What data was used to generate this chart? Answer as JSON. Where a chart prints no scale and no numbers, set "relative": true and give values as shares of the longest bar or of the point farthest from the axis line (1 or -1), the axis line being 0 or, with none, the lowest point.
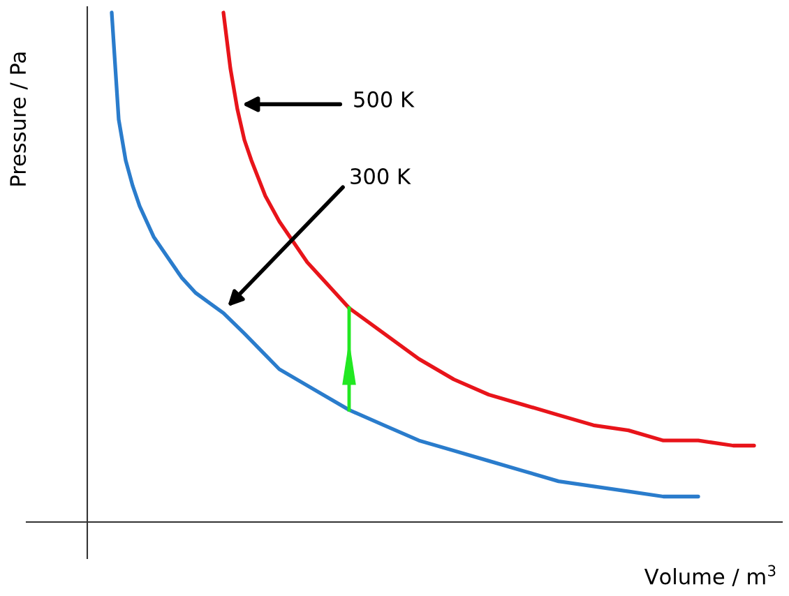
{
  "chart_data": {
    "type": "line",
    "relative": true,
    "annotations": [
      "300 K",
      "500 K"
    ],
    "xlabel": "Volume / m$^{3}$",
    "ylabel": "Pressure / Pa",
    "categories": [
      null,
      null,
      null,
      null,
      null,
      null,
      null,
      null,
      null,
      null,
      null,
      null,
      null,
      null,
      null,
      null,
      null,
      null,
      null,
      null,
      null,
      null,
      null,
      null,
      null,
      null,
      null,
      null,
      null,
      null,
      null,
      null,
      null,
      null,
      null,
      null,
      null,
      null,
      null,
      null,
      null,
      null,
      null,
      null,
      null,
      null,
      null,
      null,
      null,
      null,
      null,
      null,
      null,
      null,
      null,
      null,
      null,
      null,
      null,
      null,
      null,
      null,
      null,
      null,
      null,
      null,
      null,
      null,
      null,
      null,
      null,
      null,
      null,
      null,
      null,
      null,
      null,
      null,
      null,
      null,
      null,
      null,
      null,
      null,
      null,
      null,
      null,
      null,
      null,
      null,
      null,
      null,
      null
    ],
    "series": [
      {
        "color": "#2a7ccc",
        "values": [
          1.0,
          0.79,
          0.71,
          0.66,
          0.62,
          null,
          0.56,
          null,
          0.52,
          null,
          0.48,
          null,
          0.45,
          null,
          0.43,
          null,
          0.41,
          null,
          null,
          0.37,
          null,
          null,
          null,
          null,
          0.3,
          null,
          null,
          null,
          null,
          0.26,
          null,
          null,
          null,
          null,
          0.22,
          null,
          null,
          null,
          null,
          0.19,
          null,
          null,
          null,
          null,
          0.16,
          null,
          null,
          null,
          null,
          0.14,
          null,
          null,
          null,
          null,
          0.12,
          null,
          null,
          null,
          null,
          0.1,
          null,
          null,
          null,
          null,
          0.08,
          null,
          null,
          null,
          null,
          0.07,
          null,
          null,
          null,
          null,
          0.06,
          null,
          null,
          null,
          null,
          0.05,
          null,
          null,
          null,
          null,
          0.05,
          null,
          null,
          null,
          null,
          null,
          null,
          null,
          null
        ]
      },
      {
        "color": "#e8141a",
        "values": [
          null,
          null,
          null,
          null,
          null,
          null,
          null,
          null,
          null,
          null,
          null,
          null,
          null,
          null,
          null,
          null,
          1.0,
          0.89,
          0.81,
          0.75,
          0.71,
          null,
          0.64,
          null,
          0.59,
          null,
          0.55,
          null,
          0.51,
          null,
          0.48,
          null,
          0.45,
          null,
          0.42,
          null,
          null,
          null,
          null,
          0.37,
          null,
          null,
          null,
          null,
          0.32,
          null,
          null,
          null,
          null,
          0.28,
          null,
          null,
          null,
          null,
          0.25,
          null,
          null,
          null,
          null,
          0.23,
          null,
          null,
          null,
          null,
          0.21,
          null,
          null,
          null,
          null,
          0.19,
          null,
          null,
          null,
          null,
          0.18,
          null,
          null,
          null,
          null,
          0.16,
          null,
          null,
          null,
          null,
          0.16,
          null,
          null,
          null,
          null,
          0.15,
          null,
          null,
          0.15
        ]
      }
    ]
  }
}
